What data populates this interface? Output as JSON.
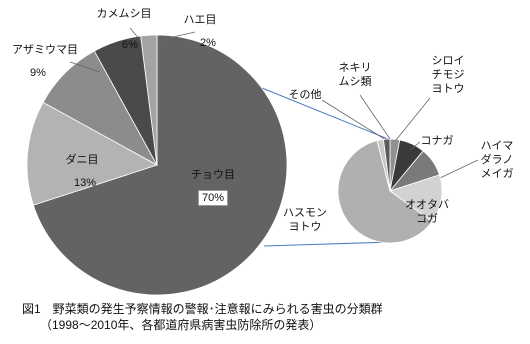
{
  "chart_data": [
    {
      "type": "pie",
      "categories": [
        "チョウ目",
        "ダニ目",
        "アザミウマ目",
        "カメムシ目",
        "ハエ目"
      ],
      "values": [
        70,
        13,
        9,
        6,
        2
      ],
      "value_labels": [
        "70%",
        "13%",
        "9%",
        "6%",
        "2%"
      ],
      "colors": [
        "#636363",
        "#b3b3b3",
        "#8c8c8c",
        "#4a4a4a",
        "#a3a3a3"
      ]
    },
    {
      "type": "pie",
      "categories": [
        "シロイチモジヨトウ",
        "コナガ",
        "ハイマダラノメイガ",
        "オオタバコガ",
        "ハスモンヨトウ",
        "その他",
        "ネキリムシ類"
      ],
      "values": [
        3,
        8,
        9,
        15,
        61,
        2,
        2
      ],
      "colors": [
        "#909090",
        "#3a3a3a",
        "#7a7a7a",
        "#d2d2d2",
        "#b0b0b0",
        "#c8c8c8",
        "#5a5a5a"
      ]
    }
  ],
  "caption": [
    "図1　野菜類の発生予察情報の警報･注意報にみられる害虫の分類群",
    "（1998～2010年、各都道府県病害虫防除所の発表）"
  ]
}
